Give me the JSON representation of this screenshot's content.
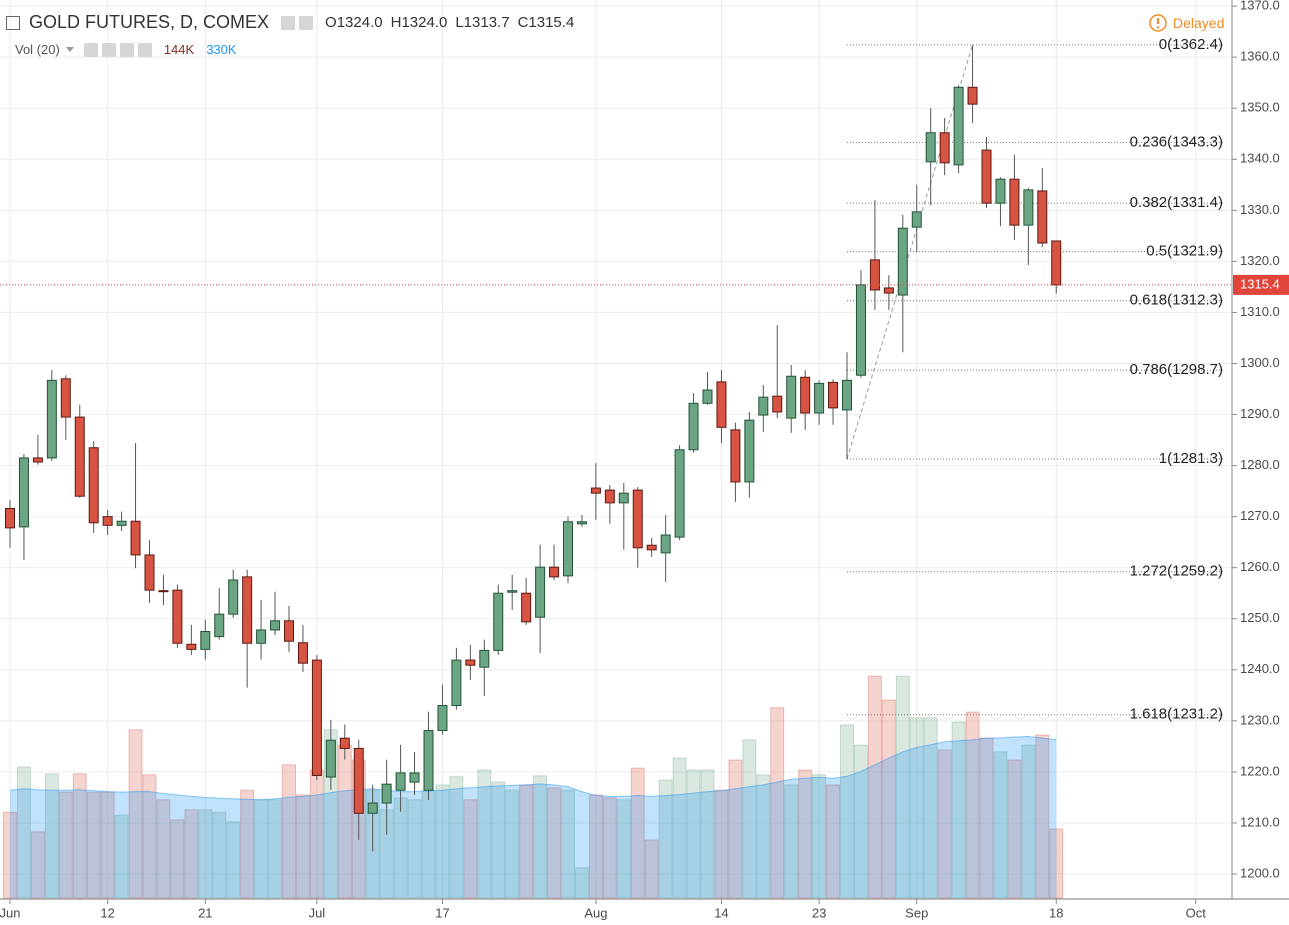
{
  "chart_data": {
    "type": "candlestick",
    "title": "GOLD FUTURES, D, COMEX",
    "ohlc_legend": [
      {
        "key": "O",
        "text": "1324.0"
      },
      {
        "key": "H",
        "text": "1324.0"
      },
      {
        "key": "L",
        "text": "1313.7"
      },
      {
        "key": "C",
        "text": "1315.4"
      }
    ],
    "status": "Delayed",
    "categories": [
      "Jun",
      null,
      null,
      null,
      null,
      null,
      null,
      "12",
      null,
      null,
      null,
      null,
      null,
      null,
      "21",
      null,
      null,
      null,
      null,
      null,
      null,
      null,
      "Jul",
      null,
      null,
      null,
      null,
      null,
      null,
      null,
      null,
      "17",
      null,
      null,
      null,
      null,
      null,
      null,
      null,
      null,
      null,
      null,
      "Aug",
      null,
      null,
      null,
      null,
      null,
      null,
      null,
      null,
      "14",
      null,
      null,
      null,
      null,
      null,
      null,
      "23",
      null,
      null,
      null,
      null,
      null,
      null,
      "Sep",
      null,
      null,
      null,
      null,
      null,
      null,
      null,
      null,
      null,
      "18",
      null,
      null,
      null,
      null,
      null,
      null,
      null,
      null,
      null,
      "Oct",
      null,
      null
    ],
    "open": [
      1271.6,
      1268.0,
      1281.5,
      1281.5,
      1297.0,
      1289.5,
      1283.5,
      1270.0,
      1268.3,
      1269.1,
      1262.5,
      1255.5,
      1255.6,
      1245.0,
      1244.0,
      1246.5,
      1250.9,
      1258.2,
      1245.2,
      1247.8,
      1249.6,
      1245.3,
      1241.9,
      1219.0,
      1226.6,
      1224.6,
      1211.9,
      1213.9,
      1216.4,
      1218.0,
      1216.4,
      1228.1,
      1233.0,
      1241.9,
      1240.5,
      1243.8,
      1255.2,
      1255.0,
      1250.3,
      1260.1,
      1258.4,
      1268.6,
      1275.6,
      1275.2,
      1272.7,
      1275.2,
      1264.4,
      1262.9,
      1266.0,
      1283.1,
      1292.2,
      1296.4,
      1287.0,
      1276.8,
      1289.9,
      1293.6,
      1289.3,
      1297.3,
      1290.3,
      1296.3,
      1290.9,
      1297.7,
      1320.3,
      1314.8,
      1313.4,
      1326.7,
      1339.5,
      1345.2,
      1338.9,
      1354.1,
      1341.8,
      1331.4,
      1336.1,
      1327.1,
      1333.8,
      1324.0,
      null,
      null,
      null,
      null,
      null,
      null,
      null,
      null,
      null,
      null,
      null,
      null
    ],
    "high": [
      1273.3,
      1282.3,
      1286.0,
      1298.7,
      1297.7,
      1291.9,
      1284.8,
      1271.3,
      1271.0,
      1284.4,
      1265.4,
      1258.6,
      1256.7,
      1248.8,
      1249.8,
      1256.0,
      1259.6,
      1259.6,
      1253.7,
      1255.3,
      1252.5,
      1248.8,
      1242.9,
      1230.2,
      1229.3,
      1226.3,
      1217.5,
      1222.4,
      1225.3,
      1223.9,
      1231.8,
      1237.1,
      1244.3,
      1244.9,
      1245.9,
      1256.7,
      1258.6,
      1258.0,
      1264.5,
      1264.5,
      1270.0,
      1270.3,
      1280.5,
      1276.2,
      1276.6,
      1275.8,
      1265.8,
      1270.3,
      1284.0,
      1294.2,
      1298.3,
      1298.7,
      1288.4,
      1290.5,
      1295.8,
      1307.5,
      1299.7,
      1298.7,
      1296.7,
      1296.9,
      1302.2,
      1318.3,
      1332.0,
      1317.3,
      1329.1,
      1335.0,
      1350.0,
      1348.1,
      1354.5,
      1362.4,
      1344.4,
      1336.5,
      1340.9,
      1334.4,
      1338.3,
      1324.0,
      null,
      null,
      null,
      null,
      null,
      null,
      null,
      null,
      null,
      null,
      null,
      null
    ],
    "low": [
      1263.9,
      1261.5,
      1280.2,
      1280.9,
      1285.0,
      1273.7,
      1266.8,
      1266.4,
      1267.2,
      1259.9,
      1253.1,
      1252.7,
      1244.3,
      1242.9,
      1242.0,
      1245.9,
      1250.2,
      1236.5,
      1242.0,
      1246.8,
      1243.5,
      1239.6,
      1218.4,
      1216.5,
      1222.4,
      1206.7,
      1204.4,
      1207.7,
      1212.2,
      1215.5,
      1214.5,
      1227.3,
      1232.2,
      1238.0,
      1234.9,
      1242.9,
      1251.7,
      1248.8,
      1243.3,
      1257.6,
      1257.0,
      1268.0,
      1269.4,
      1268.6,
      1263.5,
      1260.0,
      1262.1,
      1257.2,
      1265.4,
      1282.5,
      1291.9,
      1284.4,
      1272.9,
      1273.7,
      1286.6,
      1289.3,
      1286.4,
      1287.0,
      1288.0,
      1288.0,
      1281.3,
      1297.2,
      1310.5,
      1310.5,
      1302.2,
      1321.8,
      1331.0,
      1336.9,
      1337.3,
      1347.1,
      1330.4,
      1326.9,
      1324.2,
      1319.3,
      1322.8,
      1313.7,
      null,
      null,
      null,
      null,
      null,
      null,
      null,
      null,
      null,
      null,
      null,
      null
    ],
    "close": [
      1267.8,
      1281.5,
      1280.7,
      1296.7,
      1289.5,
      1274.0,
      1268.8,
      1268.3,
      1269.1,
      1262.5,
      1255.6,
      1255.3,
      1245.2,
      1244.0,
      1247.5,
      1250.9,
      1257.6,
      1245.2,
      1247.8,
      1249.6,
      1245.6,
      1241.3,
      1219.3,
      1226.2,
      1224.6,
      1211.9,
      1213.9,
      1217.6,
      1219.8,
      1219.8,
      1228.1,
      1233.0,
      1241.9,
      1240.9,
      1243.8,
      1255.0,
      1255.5,
      1249.4,
      1260.1,
      1258.2,
      1269.0,
      1269.0,
      1274.6,
      1272.7,
      1274.6,
      1263.9,
      1263.5,
      1266.4,
      1283.1,
      1292.2,
      1294.8,
      1287.5,
      1276.8,
      1288.9,
      1293.4,
      1290.5,
      1297.5,
      1290.3,
      1296.1,
      1291.3,
      1296.7,
      1315.4,
      1314.4,
      1313.8,
      1326.5,
      1329.7,
      1345.2,
      1339.3,
      1354.1,
      1350.8,
      1331.4,
      1336.1,
      1327.1,
      1334.0,
      1323.6,
      1315.4,
      null,
      null,
      null,
      null,
      null,
      null,
      null,
      null,
      null,
      null,
      null,
      null
    ],
    "up_color": "#6ba583",
    "down_color": "#d75442",
    "ylim": [
      1195.3,
      1371.2
    ],
    "yticks": [
      {
        "value": 1200,
        "label": "1200.0"
      },
      {
        "value": 1210,
        "label": "1210.0"
      },
      {
        "value": 1220,
        "label": "1220.0"
      },
      {
        "value": 1230,
        "label": "1230.0"
      },
      {
        "value": 1240,
        "label": "1240.0"
      },
      {
        "value": 1250,
        "label": "1250.0"
      },
      {
        "value": 1260,
        "label": "1260.0"
      },
      {
        "value": 1270,
        "label": "1270.0"
      },
      {
        "value": 1280,
        "label": "1280.0"
      },
      {
        "value": 1290,
        "label": "1290.0"
      },
      {
        "value": 1300,
        "label": "1300.0"
      },
      {
        "value": 1310,
        "label": "1310.0"
      },
      {
        "value": 1320,
        "label": "1320.0"
      },
      {
        "value": 1330,
        "label": "1330.0"
      },
      {
        "value": 1340,
        "label": "1340.0"
      },
      {
        "value": 1350,
        "label": "1350.0"
      },
      {
        "value": 1360,
        "label": "1360.0"
      },
      {
        "value": 1370,
        "label": "1370.0"
      }
    ],
    "grid": true,
    "last_price": 1315.4,
    "last_price_color": "#e0443a",
    "volume": {
      "label": "Vol (20)",
      "current_label": "144K",
      "ma_label": "330K",
      "vlim": [
        0,
        1874000
      ],
      "ma_color": "#2196f3",
      "values": [
        179000,
        273000,
        138000,
        259000,
        221000,
        259000,
        221000,
        221000,
        173000,
        351000,
        257000,
        205000,
        163000,
        184000,
        184000,
        179000,
        159000,
        225000,
        205000,
        205000,
        278000,
        215000,
        267000,
        351000,
        319000,
        288000,
        225000,
        184000,
        209000,
        205000,
        225000,
        236000,
        253000,
        205000,
        267000,
        242000,
        225000,
        236000,
        255000,
        230000,
        225000,
        63000,
        215000,
        209000,
        205000,
        271000,
        121000,
        246000,
        292000,
        267000,
        267000,
        225000,
        288000,
        330000,
        257000,
        397000,
        236000,
        267000,
        257000,
        236000,
        361000,
        319000,
        463000,
        413000,
        463000,
        376000,
        376000,
        309000,
        367000,
        388000,
        334000,
        305000,
        288000,
        319000,
        340000,
        144000,
        null,
        null,
        null,
        null,
        null,
        null,
        null,
        null,
        null,
        null,
        null,
        null
      ],
      "ma": [
        225000,
        228000,
        226000,
        225000,
        225000,
        226000,
        224000,
        222000,
        221000,
        222000,
        222000,
        218000,
        215000,
        212000,
        210000,
        208000,
        207000,
        206000,
        205000,
        207000,
        210000,
        212000,
        215000,
        220000,
        224000,
        226000,
        228000,
        225000,
        222000,
        222000,
        223000,
        225000,
        228000,
        230000,
        232000,
        234000,
        235000,
        236000,
        238000,
        236000,
        232000,
        222000,
        214000,
        212000,
        212000,
        214000,
        212000,
        214000,
        216000,
        219000,
        222000,
        224000,
        228000,
        232000,
        236000,
        242000,
        248000,
        250000,
        252000,
        250000,
        254000,
        264000,
        278000,
        292000,
        305000,
        314000,
        320000,
        326000,
        328000,
        330000,
        334000,
        334000,
        336000,
        337000,
        334000,
        330000,
        null,
        null,
        null,
        null,
        null,
        null,
        null,
        null,
        null,
        null,
        null,
        null
      ]
    },
    "fib": {
      "start": 60,
      "end": 69,
      "levels": [
        {
          "value": 1362.4,
          "label": "0(1362.4)"
        },
        {
          "value": 1343.3,
          "label": "0.236(1343.3)"
        },
        {
          "value": 1331.4,
          "label": "0.382(1331.4)"
        },
        {
          "value": 1321.9,
          "label": "0.5(1321.9)"
        },
        {
          "value": 1312.3,
          "label": "0.618(1312.3)"
        },
        {
          "value": 1298.7,
          "label": "0.786(1298.7)"
        },
        {
          "value": 1281.3,
          "label": "1(1281.3)"
        },
        {
          "value": 1259.2,
          "label": "1.272(1259.2)"
        },
        {
          "value": 1231.2,
          "label": "1.618(1231.2)"
        }
      ]
    }
  }
}
